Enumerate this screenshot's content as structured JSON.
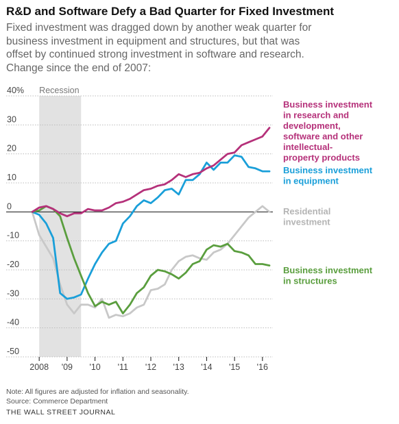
{
  "title": "R&D and Software Defy a Bad Quarter for Fixed Investment",
  "subtitle": "Fixed investment was dragged down by another weak quarter for business investment in equipment and structures, but that was offset by continued strong investment in software and research. Change since the end of 2007:",
  "note": "Note: All figures are adjusted for inflation and seasonality.",
  "source": "Source: Commerce Department",
  "brand": "THE WALL STREET JOURNAL",
  "chart_data": {
    "type": "line",
    "ylim": [
      -50,
      40
    ],
    "xlim": [
      2007.6,
      2016.35
    ],
    "y_ticks": [
      40,
      30,
      20,
      10,
      0,
      -10,
      -20,
      -30,
      -40,
      -50
    ],
    "y_tick_labels": [
      "40%",
      "30",
      "20",
      "10",
      "0",
      "-10",
      "-20",
      "-30",
      "-40",
      "-50"
    ],
    "x_ticks": [
      {
        "value": 2008,
        "label": "2008"
      },
      {
        "value": 2009,
        "label": "'09"
      },
      {
        "value": 2010,
        "label": "'10"
      },
      {
        "value": 2011,
        "label": "'11"
      },
      {
        "value": 2012,
        "label": "'12"
      },
      {
        "value": 2013,
        "label": "'13"
      },
      {
        "value": 2014,
        "label": "'14"
      },
      {
        "value": 2015,
        "label": "'15"
      },
      {
        "value": 2016,
        "label": "'16"
      }
    ],
    "recession": {
      "label": "Recession",
      "start": 2008.0,
      "end": 2009.5
    },
    "series": [
      {
        "name": "Business investment in research and development, software and other intellectual-property products",
        "label_lines": [
          "Business investment",
          "in research and",
          "development,",
          "software and other",
          "intellectual-",
          "property products"
        ],
        "color": "#b5317a",
        "x": [
          2007.75,
          2008.0,
          2008.25,
          2008.5,
          2008.75,
          2009.0,
          2009.25,
          2009.5,
          2009.75,
          2010.0,
          2010.25,
          2010.5,
          2010.75,
          2011.0,
          2011.25,
          2011.5,
          2011.75,
          2012.0,
          2012.25,
          2012.5,
          2012.75,
          2013.0,
          2013.25,
          2013.5,
          2013.75,
          2014.0,
          2014.25,
          2014.5,
          2014.75,
          2015.0,
          2015.25,
          2015.5,
          2015.75,
          2016.0,
          2016.25
        ],
        "values": [
          0,
          1.5,
          2,
          1,
          -0.5,
          -1.5,
          -0.5,
          -0.5,
          1,
          0.5,
          0.5,
          1.5,
          3,
          3.5,
          4.5,
          6,
          7.5,
          8,
          9,
          9.5,
          11,
          13,
          12,
          13,
          13.5,
          15,
          16,
          18,
          20,
          20.5,
          23,
          24,
          25,
          26,
          29
        ]
      },
      {
        "name": "Business investment in equipment",
        "label_lines": [
          "Business investment",
          "in equipment"
        ],
        "color": "#1a9fd9",
        "x": [
          2007.75,
          2008.0,
          2008.25,
          2008.5,
          2008.75,
          2009.0,
          2009.25,
          2009.5,
          2009.75,
          2010.0,
          2010.25,
          2010.5,
          2010.75,
          2011.0,
          2011.25,
          2011.5,
          2011.75,
          2012.0,
          2012.25,
          2012.5,
          2012.75,
          2013.0,
          2013.25,
          2013.5,
          2013.75,
          2014.0,
          2014.25,
          2014.5,
          2014.75,
          2015.0,
          2015.25,
          2015.5,
          2015.75,
          2016.0,
          2016.25
        ],
        "values": [
          0,
          -1,
          -4,
          -9,
          -28,
          -30,
          -29.5,
          -28.5,
          -23,
          -18,
          -14,
          -11,
          -10,
          -4,
          -1.5,
          2,
          4,
          3,
          5,
          7.5,
          8,
          6,
          11,
          11,
          13,
          17,
          14.5,
          17,
          17,
          19.5,
          19,
          15.5,
          15,
          14,
          14
        ]
      },
      {
        "name": "Residential investment",
        "label_lines": [
          "Residential",
          "investment"
        ],
        "color": "#c8c8c8",
        "x": [
          2007.75,
          2008.0,
          2008.25,
          2008.5,
          2008.75,
          2009.0,
          2009.25,
          2009.5,
          2009.75,
          2010.0,
          2010.25,
          2010.5,
          2010.75,
          2011.0,
          2011.25,
          2011.5,
          2011.75,
          2012.0,
          2012.25,
          2012.5,
          2012.75,
          2013.0,
          2013.25,
          2013.5,
          2013.75,
          2014.0,
          2014.25,
          2014.5,
          2014.75,
          2015.0,
          2015.25,
          2015.5,
          2015.75,
          2016.0,
          2016.25
        ],
        "values": [
          0,
          -8,
          -12,
          -16,
          -25,
          -32,
          -35,
          -32,
          -32,
          -33,
          -30,
          -36.5,
          -35.5,
          -36,
          -35,
          -33,
          -32,
          -27,
          -26.5,
          -25,
          -20,
          -17,
          -15.5,
          -15,
          -16,
          -16.5,
          -14,
          -13,
          -11,
          -8,
          -5,
          -2,
          0,
          2,
          0
        ]
      },
      {
        "name": "Business investment in structures",
        "label_lines": [
          "Business investment",
          "in structures"
        ],
        "color": "#5a9e3e",
        "x": [
          2007.75,
          2008.0,
          2008.25,
          2008.5,
          2008.75,
          2009.0,
          2009.25,
          2009.5,
          2009.75,
          2010.0,
          2010.25,
          2010.5,
          2010.75,
          2011.0,
          2011.25,
          2011.5,
          2011.75,
          2012.0,
          2012.25,
          2012.5,
          2012.75,
          2013.0,
          2013.25,
          2013.5,
          2013.75,
          2014.0,
          2014.25,
          2014.5,
          2014.75,
          2015.0,
          2015.25,
          2015.5,
          2015.75,
          2016.0,
          2016.25
        ],
        "values": [
          0,
          0.5,
          2,
          1,
          -1.5,
          -9,
          -16,
          -22,
          -28,
          -32.5,
          -31,
          -32,
          -31,
          -35,
          -32,
          -28,
          -26,
          -22,
          -20,
          -20.5,
          -21.5,
          -23,
          -21,
          -18,
          -17,
          -13,
          -11.5,
          -12,
          -11,
          -13.5,
          -14,
          -15,
          -18,
          -18,
          -18.5
        ]
      }
    ]
  }
}
